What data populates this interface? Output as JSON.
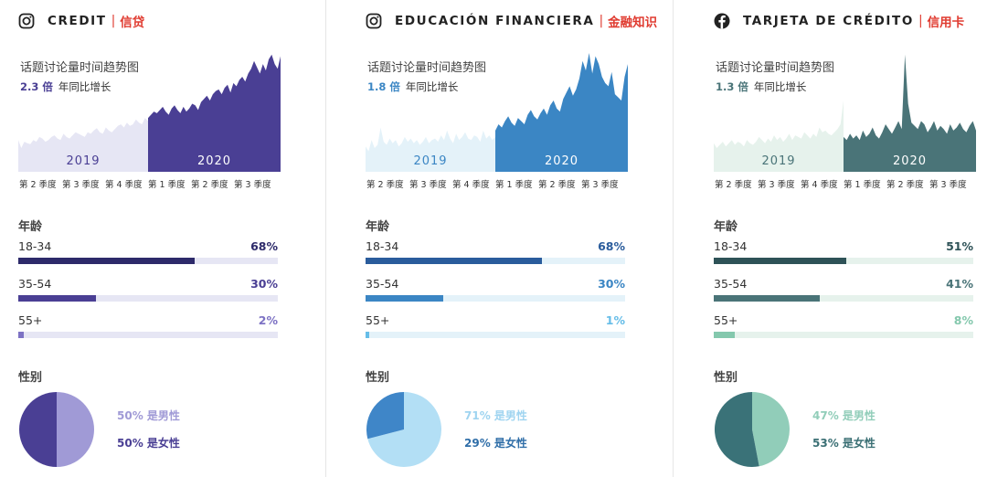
{
  "panels": [
    {
      "platform_icon": "instagram-icon",
      "title": "CREDIT",
      "title_cn": "信贷",
      "trend_title": "话题讨论量时间趋势图",
      "growth_value": "2.3 倍",
      "growth_text": "年同比增长",
      "colors": {
        "accent": "#4a3f94",
        "accent_dark": "#2d2a6a",
        "light": "#e6e6f4",
        "pie_a": "#a09ad6",
        "pie_b": "#4a3f94",
        "legend_a": "#a09ad6",
        "legend_b": "#4a3f94",
        "pct_small": "#7d72c4"
      },
      "chart_data": {
        "type": "area",
        "series": [
          {
            "name": "2019",
            "values": [
              40,
              30,
              38,
              36,
              35,
              40,
              38,
              44,
              42,
              38,
              40,
              44,
              46,
              42,
              40,
              48,
              44,
              42,
              46,
              50,
              48,
              46,
              44,
              50,
              48,
              52,
              55,
              50,
              48,
              56,
              52,
              50,
              54,
              58,
              60,
              56,
              62,
              58,
              60,
              66,
              62,
              60,
              68,
              64
            ]
          },
          {
            "name": "2020",
            "values": [
              68,
              72,
              76,
              74,
              78,
              82,
              76,
              72,
              80,
              84,
              78,
              74,
              82,
              76,
              80,
              86,
              84,
              78,
              88,
              92,
              96,
              90,
              98,
              102,
              104,
              98,
              106,
              110,
              100,
              112,
              108,
              116,
              120,
              114,
              124,
              130,
              140,
              132,
              124,
              136,
              128,
              142,
              148,
              136,
              130,
              146
            ]
          }
        ],
        "period_labels": [
          "2019",
          "2020"
        ],
        "tick_labels": [
          "第 2 季度",
          "第 3 季度",
          "第 4 季度",
          "第 1 季度",
          "第 2 季度",
          "第 3 季度"
        ]
      },
      "age_title": "年龄",
      "age": [
        {
          "label": "18-34",
          "pct_text": "68%",
          "value": 68
        },
        {
          "label": "35-54",
          "pct_text": "30%",
          "value": 30
        },
        {
          "label": "55+",
          "pct_text": "2%",
          "value": 2
        }
      ],
      "gender_title": "性别",
      "gender": {
        "male_text": "50% 是男性",
        "female_text": "50% 是女性",
        "male": 50,
        "female": 50
      }
    },
    {
      "platform_icon": "instagram-icon",
      "title": "EDUCACIÓN FINANCIERA",
      "title_cn": "金融知识",
      "trend_title": "话题讨论量时间趋势图",
      "growth_value": "1.8 倍",
      "growth_text": "年同比增长",
      "colors": {
        "accent": "#3b86c4",
        "accent_dark": "#2a5c9c",
        "light": "#e4f2f9",
        "pie_a": "#b3dff5",
        "pie_b": "#3f86c8",
        "legend_a": "#9fd4f0",
        "legend_b": "#2f6ea8",
        "pct_small": "#66bde8"
      },
      "chart_data": {
        "type": "area",
        "series": [
          {
            "name": "2019",
            "values": [
              32,
              26,
              40,
              30,
              34,
              56,
              38,
              34,
              42,
              36,
              40,
              32,
              36,
              44,
              38,
              42,
              36,
              40,
              34,
              38,
              44,
              36,
              40,
              42,
              38,
              46,
              40,
              52,
              42,
              36,
              48,
              40,
              44,
              50,
              42,
              40,
              46,
              44,
              38,
              52,
              42,
              46,
              40,
              44
            ]
          },
          {
            "name": "2020",
            "values": [
              52,
              60,
              56,
              64,
              70,
              62,
              58,
              68,
              64,
              60,
              72,
              78,
              70,
              66,
              74,
              80,
              72,
              84,
              90,
              80,
              76,
              92,
              100,
              108,
              96,
              104,
              118,
              140,
              128,
              150,
              124,
              146,
              136,
              120,
              112,
              108,
              126,
              98,
              94,
              90,
              120,
              136
            ]
          }
        ],
        "period_labels": [
          "2019",
          "2020"
        ],
        "tick_labels": [
          "第 2 季度",
          "第 3 季度",
          "第 4 季度",
          "第 1 季度",
          "第 2 季度",
          "第 3 季度"
        ]
      },
      "age_title": "年龄",
      "age": [
        {
          "label": "18-34",
          "pct_text": "68%",
          "value": 68
        },
        {
          "label": "35-54",
          "pct_text": "30%",
          "value": 30
        },
        {
          "label": "55+",
          "pct_text": "1%",
          "value": 1
        }
      ],
      "gender_title": "性别",
      "gender": {
        "male_text": "71% 是男性",
        "female_text": "29% 是女性",
        "male": 71,
        "female": 29
      }
    },
    {
      "platform_icon": "facebook-icon",
      "title": "TARJETA DE CRÉDITO",
      "title_cn": "信用卡",
      "trend_title": "话题讨论量时间趋势图",
      "growth_value": "1.3 倍",
      "growth_text": "年同比增长",
      "colors": {
        "accent": "#4a7478",
        "accent_dark": "#2e5257",
        "light": "#e6f2ec",
        "pie_a": "#91cdb9",
        "pie_b": "#3a7278",
        "legend_a": "#91cdb9",
        "legend_b": "#3a6f74",
        "pct_small": "#84c8ad"
      },
      "chart_data": {
        "type": "area",
        "series": [
          {
            "name": "2019",
            "values": [
              36,
              30,
              34,
              38,
              32,
              36,
              40,
              34,
              38,
              36,
              32,
              40,
              36,
              34,
              38,
              44,
              40,
              36,
              42,
              38,
              46,
              40,
              44,
              38,
              42,
              48,
              40,
              46,
              44,
              42,
              50,
              46,
              42,
              48,
              44,
              56,
              50,
              52,
              48,
              46,
              50,
              54,
              60,
              90
            ]
          },
          {
            "name": "2020",
            "values": [
              44,
              40,
              48,
              42,
              46,
              40,
              52,
              44,
              48,
              56,
              46,
              42,
              50,
              60,
              54,
              48,
              56,
              64,
              54,
              148,
              86,
              62,
              58,
              54,
              64,
              60,
              50,
              56,
              64,
              52,
              58,
              54,
              48,
              60,
              52,
              56,
              62,
              54,
              50,
              58,
              64,
              52
            ]
          }
        ],
        "period_labels": [
          "2019",
          "2020"
        ],
        "tick_labels": [
          "第 2 季度",
          "第 3 季度",
          "第 4 季度",
          "第 1 季度",
          "第 2 季度",
          "第 3 季度"
        ]
      },
      "age_title": "年龄",
      "age": [
        {
          "label": "18-34",
          "pct_text": "51%",
          "value": 51
        },
        {
          "label": "35-54",
          "pct_text": "41%",
          "value": 41
        },
        {
          "label": "55+",
          "pct_text": "8%",
          "value": 8
        }
      ],
      "gender_title": "性别",
      "gender": {
        "male_text": "47% 是男性",
        "female_text": "53% 是女性",
        "male": 47,
        "female": 53
      }
    }
  ]
}
